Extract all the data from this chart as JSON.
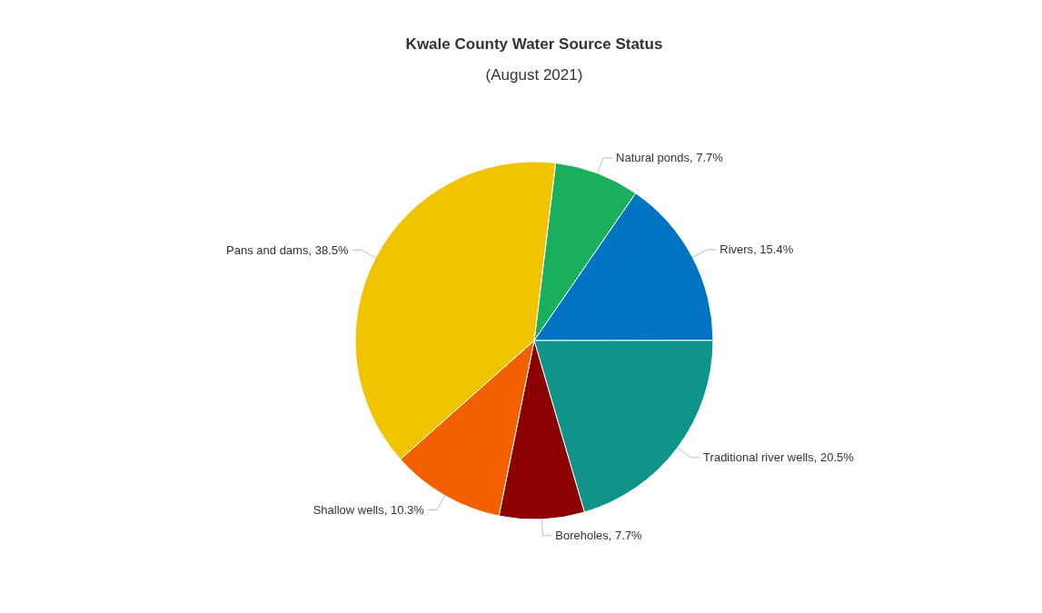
{
  "chart_data": {
    "type": "pie",
    "title": "Kwale County Water Source Status",
    "subtitle": "(August 2021)",
    "categories": [
      "Natural ponds",
      "Rivers",
      "Traditional river wells",
      "Boreholes",
      "Shallow wells",
      "Pans and dams"
    ],
    "values": [
      7.7,
      15.4,
      20.5,
      7.7,
      10.3,
      38.5
    ],
    "colors": [
      "#1aaf5d",
      "#0073c2",
      "#0e9488",
      "#8b0000",
      "#f26000",
      "#f0c400"
    ],
    "value_labels": [
      ", 7.7%",
      ", 15.4%",
      ", 20.5%",
      ", 7.7%",
      ", 10.3%",
      ", 38.5%"
    ]
  }
}
